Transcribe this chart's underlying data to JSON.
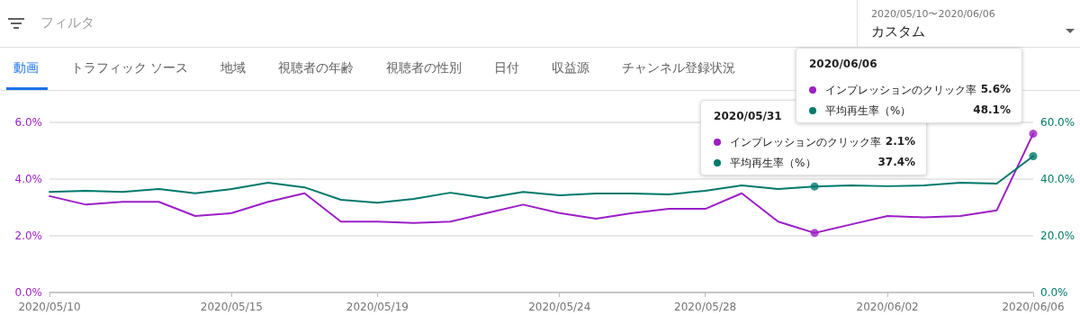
{
  "chart_data": {
    "type": "line",
    "x": [
      "2020-05-10",
      "2020-05-11",
      "2020-05-12",
      "2020-05-13",
      "2020-05-14",
      "2020-05-15",
      "2020-05-16",
      "2020-05-17",
      "2020-05-18",
      "2020-05-19",
      "2020-05-20",
      "2020-05-21",
      "2020-05-22",
      "2020-05-23",
      "2020-05-24",
      "2020-05-25",
      "2020-05-26",
      "2020-05-27",
      "2020-05-28",
      "2020-05-29",
      "2020-05-30",
      "2020-05-31",
      "2020-06-01",
      "2020-06-02",
      "2020-06-03",
      "2020-06-04",
      "2020-06-05",
      "2020-06-06"
    ],
    "series": [
      {
        "name": "インプレッションのクリック率",
        "color": "#9c1fc6",
        "values": [
          3.4,
          3.1,
          3.2,
          3.2,
          2.7,
          2.8,
          3.2,
          3.5,
          2.5,
          2.5,
          2.45,
          2.5,
          2.8,
          3.1,
          2.8,
          2.6,
          2.8,
          2.95,
          2.95,
          3.5,
          2.5,
          2.1,
          2.4,
          2.7,
          2.65,
          2.7,
          2.9,
          5.6
        ]
      },
      {
        "name": "平均再生率（%）",
        "color": "#00796b",
        "axis": "y2",
        "values": [
          35.5,
          35.9,
          35.5,
          36.5,
          35,
          36.5,
          38.7,
          37.1,
          32.7,
          31.7,
          33,
          35.2,
          33.3,
          35.5,
          34.3,
          34.9,
          34.9,
          34.6,
          35.9,
          37.8,
          36.5,
          37.4,
          37.8,
          37.5,
          37.8,
          38.7,
          38.4,
          48.1
        ]
      },
      {
        "type": "scatter",
        "marker": "circle",
        "color": "#9c1fc6",
        "x": [
          "2020-05-31",
          "2020-06-06"
        ],
        "values": [
          2.1,
          5.6
        ]
      },
      {
        "type": "scatter",
        "marker": "circle",
        "color": "#00796b",
        "axis": "y2",
        "x": [
          "2020-05-31",
          "2020-06-06"
        ],
        "values": [
          37.4,
          48.1
        ]
      }
    ],
    "xlim": [
      "2020-05-10",
      "2020-06-06"
    ],
    "xticks": [
      {
        "value": "2020-05-10",
        "label": "2020/05/10"
      },
      {
        "value": "2020-05-15",
        "label": "2020/05/15"
      },
      {
        "value": "2020-05-19",
        "label": "2020/05/19"
      },
      {
        "value": "2020-05-24",
        "label": "2020/05/24"
      },
      {
        "value": "2020-05-28",
        "label": "2020/05/28"
      },
      {
        "value": "2020-06-02",
        "label": "2020/06/02"
      },
      {
        "value": "2020-06-06",
        "label": "2020/06/06"
      }
    ],
    "ylim": [
      0,
      6
    ],
    "yticks": [
      {
        "value": 0,
        "label": "0.0%"
      },
      {
        "value": 2,
        "label": "2.0%"
      },
      {
        "value": 4,
        "label": "4.0%"
      },
      {
        "value": 6,
        "label": "6.0%"
      }
    ],
    "y2lim": [
      0,
      60
    ],
    "y2ticks": [
      {
        "value": 0,
        "label": "0.0%"
      },
      {
        "value": 20,
        "label": "20.0%"
      },
      {
        "value": 40,
        "label": "40.0%"
      },
      {
        "value": 60,
        "label": "60.0%"
      }
    ],
    "grid": "y",
    "legend": "top right",
    "marker": "none",
    "line_style": "solid",
    "annotations": [
      "フィルタ",
      "2020/05/10〜2020/06/06",
      "カスタム",
      "動画",
      "トラフィック ソース",
      "地域",
      "視聴者の年齢",
      "視聴者の性別",
      "日付",
      "収益源",
      "チャンネル登録状況",
      "2020/05/31",
      "2.1%",
      "37.4%",
      "2020/06/06",
      "5.6%",
      "48.1%"
    ]
  }
}
